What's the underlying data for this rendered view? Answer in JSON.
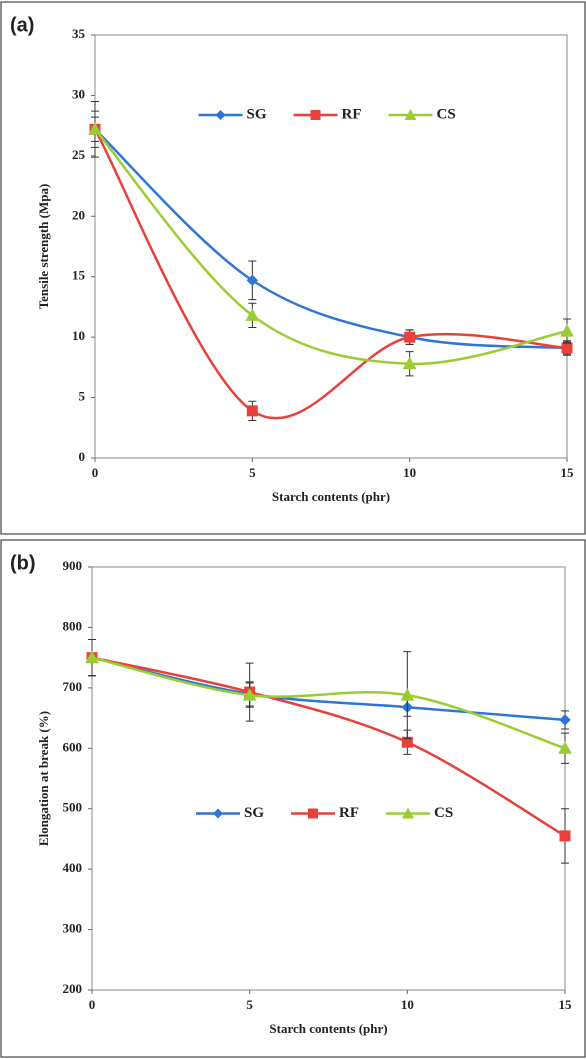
{
  "chart_data": [
    {
      "type": "line",
      "label": "(a)",
      "x_label": "Starch contents (phr)",
      "y_label": "Tensile strength (Mpa)",
      "x": [
        0,
        5,
        10,
        15
      ],
      "xlim": [
        0,
        15
      ],
      "xticks": [
        0,
        5,
        10,
        15
      ],
      "ylim": [
        0,
        35
      ],
      "yticks": [
        0,
        5,
        10,
        15,
        20,
        25,
        30,
        35
      ],
      "legend": "upper center",
      "smooth": true,
      "series": [
        {
          "name": "SG",
          "color": "#2e75d6",
          "marker": "diamond",
          "values": [
            27.2,
            14.7,
            10,
            9.1
          ],
          "errors": [
            2.3,
            1.6,
            0.6,
            0.6
          ]
        },
        {
          "name": "RF",
          "color": "#e8413c",
          "marker": "square",
          "values": [
            27.2,
            3.9,
            10,
            9.1
          ],
          "errors": [
            1.5,
            0.8,
            0.6,
            0.5
          ]
        },
        {
          "name": "CS",
          "color": "#9acd32",
          "marker": "triangle",
          "values": [
            27.2,
            11.8,
            7.8,
            10.5
          ],
          "errors": [
            1.0,
            1.0,
            1.0,
            1.0
          ]
        }
      ]
    },
    {
      "type": "line",
      "label": "(b)",
      "x_label": "Starch contents (phr)",
      "y_label": "Elongation at break (%)",
      "x": [
        0,
        5,
        10,
        15
      ],
      "xlim": [
        0,
        15
      ],
      "xticks": [
        0,
        5,
        10,
        15
      ],
      "ylim": [
        200,
        900
      ],
      "yticks": [
        200,
        300,
        400,
        500,
        600,
        700,
        800,
        900
      ],
      "legend": "center",
      "smooth": true,
      "series": [
        {
          "name": "SG",
          "color": "#2e75d6",
          "marker": "diamond",
          "values": [
            750,
            690,
            668,
            647
          ],
          "errors": [
            30,
            20,
            15,
            15
          ]
        },
        {
          "name": "RF",
          "color": "#e8413c",
          "marker": "square",
          "values": [
            750,
            693,
            610,
            455
          ],
          "errors": [
            30,
            48,
            20,
            45
          ]
        },
        {
          "name": "CS",
          "color": "#9acd32",
          "marker": "triangle",
          "values": [
            750,
            688,
            688,
            600
          ],
          "errors": [
            30,
            20,
            72,
            25
          ]
        }
      ]
    }
  ]
}
